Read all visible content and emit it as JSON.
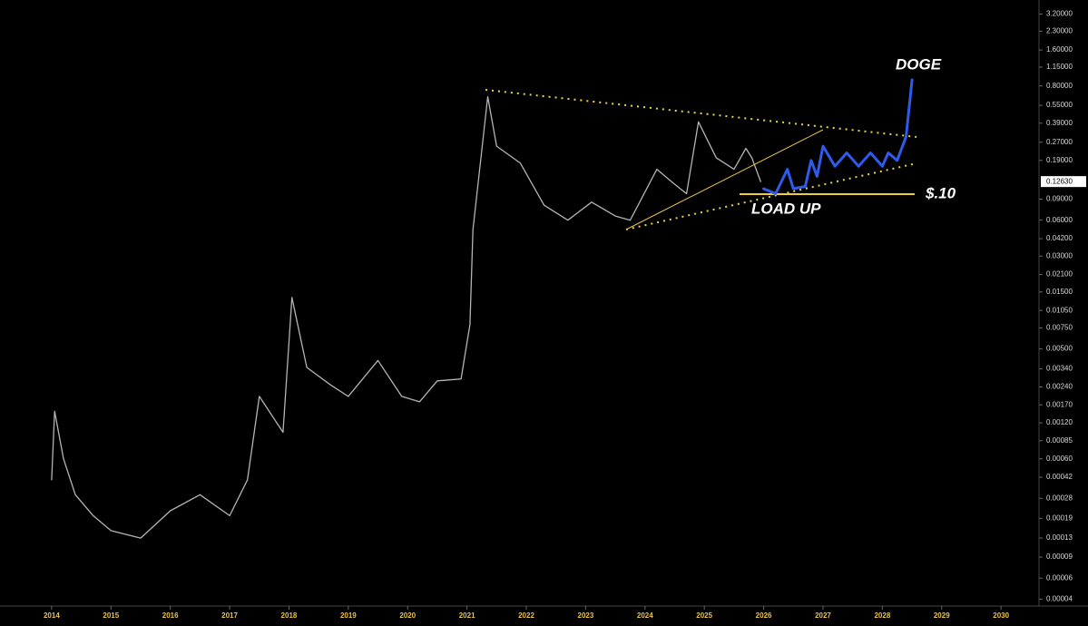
{
  "chart_data": {
    "type": "line",
    "log_scale": true,
    "xlim": [
      2013.13,
      2030.64
    ],
    "ylim": [
      3.5e-05,
      4.2
    ],
    "xticks": [
      2014,
      2015,
      2016,
      2017,
      2018,
      2019,
      2020,
      2021,
      2022,
      2023,
      2024,
      2025,
      2026,
      2027,
      2028,
      2029,
      2030
    ],
    "yticks": [
      {
        "value": 3.2,
        "label": "3.20000"
      },
      {
        "value": 2.3,
        "label": "2.30000"
      },
      {
        "value": 1.6,
        "label": "1.60000"
      },
      {
        "value": 1.15,
        "label": "1.15000"
      },
      {
        "value": 0.8,
        "label": "0.80000"
      },
      {
        "value": 0.55,
        "label": "0.55000"
      },
      {
        "value": 0.39,
        "label": "0.39000"
      },
      {
        "value": 0.27,
        "label": "0.27000"
      },
      {
        "value": 0.19,
        "label": "0.19000"
      },
      {
        "value": 0.09,
        "label": "0.09000"
      },
      {
        "value": 0.06,
        "label": "0.06000"
      },
      {
        "value": 0.042,
        "label": "0.04200"
      },
      {
        "value": 0.03,
        "label": "0.03000"
      },
      {
        "value": 0.021,
        "label": "0.02100"
      },
      {
        "value": 0.015,
        "label": "0.01500"
      },
      {
        "value": 0.0105,
        "label": "0.01050"
      },
      {
        "value": 0.0075,
        "label": "0.00750"
      },
      {
        "value": 0.005,
        "label": "0.00500"
      },
      {
        "value": 0.0034,
        "label": "0.00340"
      },
      {
        "value": 0.0024,
        "label": "0.00240"
      },
      {
        "value": 0.0017,
        "label": "0.00170"
      },
      {
        "value": 0.0012,
        "label": "0.00120"
      },
      {
        "value": 0.00085,
        "label": "0.00085"
      },
      {
        "value": 0.0006,
        "label": "0.00060"
      },
      {
        "value": 0.00042,
        "label": "0.00042"
      },
      {
        "value": 0.00028,
        "label": "0.00028"
      },
      {
        "value": 0.00019,
        "label": "0.00019"
      },
      {
        "value": 0.00013,
        "label": "0.00013"
      },
      {
        "value": 9e-05,
        "label": "0.00009"
      },
      {
        "value": 6e-05,
        "label": "0.00006"
      },
      {
        "value": 4e-05,
        "label": "0.00004"
      }
    ],
    "price_label": {
      "value": 0.1263,
      "label": "0.12630"
    },
    "series": [
      {
        "color": "#b4b4b4",
        "x": [
          2014.0,
          2014.05,
          2014.2,
          2014.4,
          2014.7,
          2015.0,
          2015.5,
          2016.0,
          2016.5,
          2017.0,
          2017.3,
          2017.5,
          2017.9,
          2018.05,
          2018.3,
          2018.7,
          2019.0,
          2019.5,
          2019.9,
          2020.2,
          2020.5,
          2020.9,
          2021.05,
          2021.1,
          2021.35,
          2021.5,
          2021.9,
          2022.3,
          2022.7,
          2023.1,
          2023.5,
          2023.75,
          2024.2,
          2024.5,
          2024.7,
          2024.9,
          2025.2,
          2025.5,
          2025.7,
          2025.8,
          2025.95
        ],
        "values": [
          0.0004,
          0.0015,
          0.0006,
          0.0003,
          0.0002,
          0.00015,
          0.00013,
          0.00022,
          0.0003,
          0.0002,
          0.0004,
          0.002,
          0.001,
          0.0135,
          0.0035,
          0.0025,
          0.002,
          0.004,
          0.002,
          0.0018,
          0.0027,
          0.0028,
          0.008,
          0.05,
          0.65,
          0.25,
          0.18,
          0.08,
          0.06,
          0.085,
          0.065,
          0.06,
          0.16,
          0.12,
          0.1,
          0.4,
          0.2,
          0.16,
          0.24,
          0.2,
          0.1263
        ]
      },
      {
        "color": "#2f5bea",
        "x": [
          2026.0,
          2026.2,
          2026.4,
          2026.5,
          2026.7,
          2026.8,
          2026.9,
          2027.0,
          2027.2,
          2027.4,
          2027.6,
          2027.8,
          2028.0,
          2028.1,
          2028.25,
          2028.4,
          2028.5
        ],
        "values": [
          0.11,
          0.1,
          0.16,
          0.11,
          0.115,
          0.19,
          0.14,
          0.25,
          0.17,
          0.22,
          0.17,
          0.22,
          0.17,
          0.22,
          0.19,
          0.3,
          0.9
        ]
      }
    ],
    "annotations": [
      "DOGE",
      "$.10",
      "LOAD UP"
    ]
  }
}
